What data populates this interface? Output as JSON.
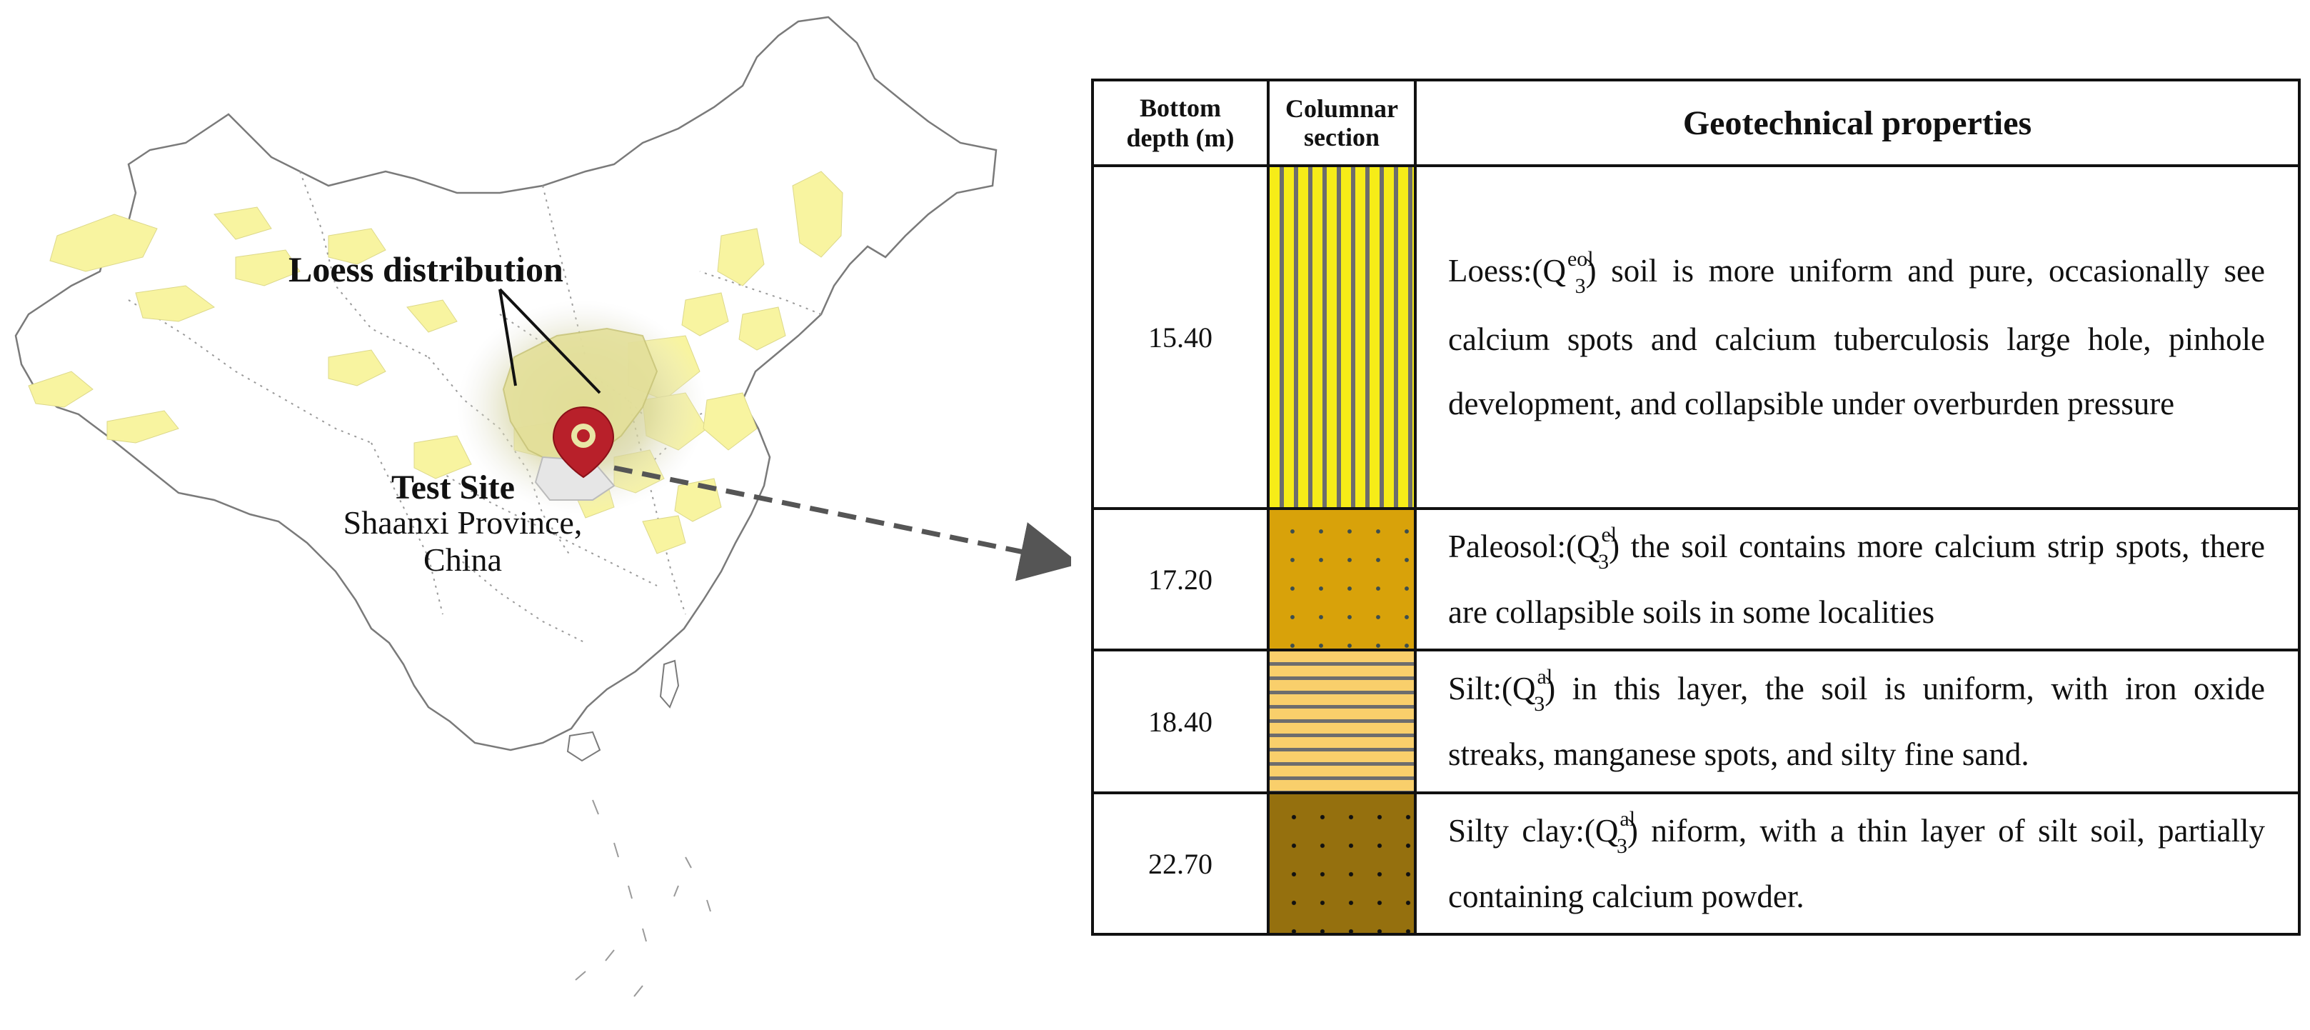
{
  "map": {
    "loess_label": "Loess distribution",
    "site_title": "Test Site",
    "site_place_line1": "Shaanxi Province,",
    "site_place_line2": "China",
    "colors": {
      "loess": "#f8f4a0",
      "marker": "#b8202a",
      "outline": "#777777"
    }
  },
  "table": {
    "headers": {
      "depth_line1": "Bottom",
      "depth_line2": "depth (m)",
      "column_line1": "Columnar",
      "column_line2": "section",
      "properties": "Geotechnical properties"
    },
    "rows": [
      {
        "depth": "15.40",
        "pattern": "vertical-stripes",
        "name": "Loess:(Q",
        "sup": "eol",
        "sub": "3",
        "text": ") soil is more uniform and pure, occasionally see calcium spots and calcium tuberculosis large hole, pinhole development, and collapsible under overburden pressure"
      },
      {
        "depth": "17.20",
        "pattern": "dots",
        "name": "Paleosol:(Q",
        "sup": "el",
        "sub": "3",
        "text": ") the soil contains more calcium strip spots, there are collapsible soils in some localities"
      },
      {
        "depth": "18.40",
        "pattern": "horizontal-stripes",
        "name": "Silt:(Q",
        "sup": "al",
        "sub": "3",
        "text": ") in this layer, the soil is uniform, with iron oxide streaks, manganese spots, and silty fine sand."
      },
      {
        "depth": "22.70",
        "pattern": "dots",
        "name": "Silty clay:(Q",
        "sup": "al",
        "sub": "3",
        "text": ") niform, with a thin layer of silt soil, partially containing calcium powder."
      }
    ]
  }
}
